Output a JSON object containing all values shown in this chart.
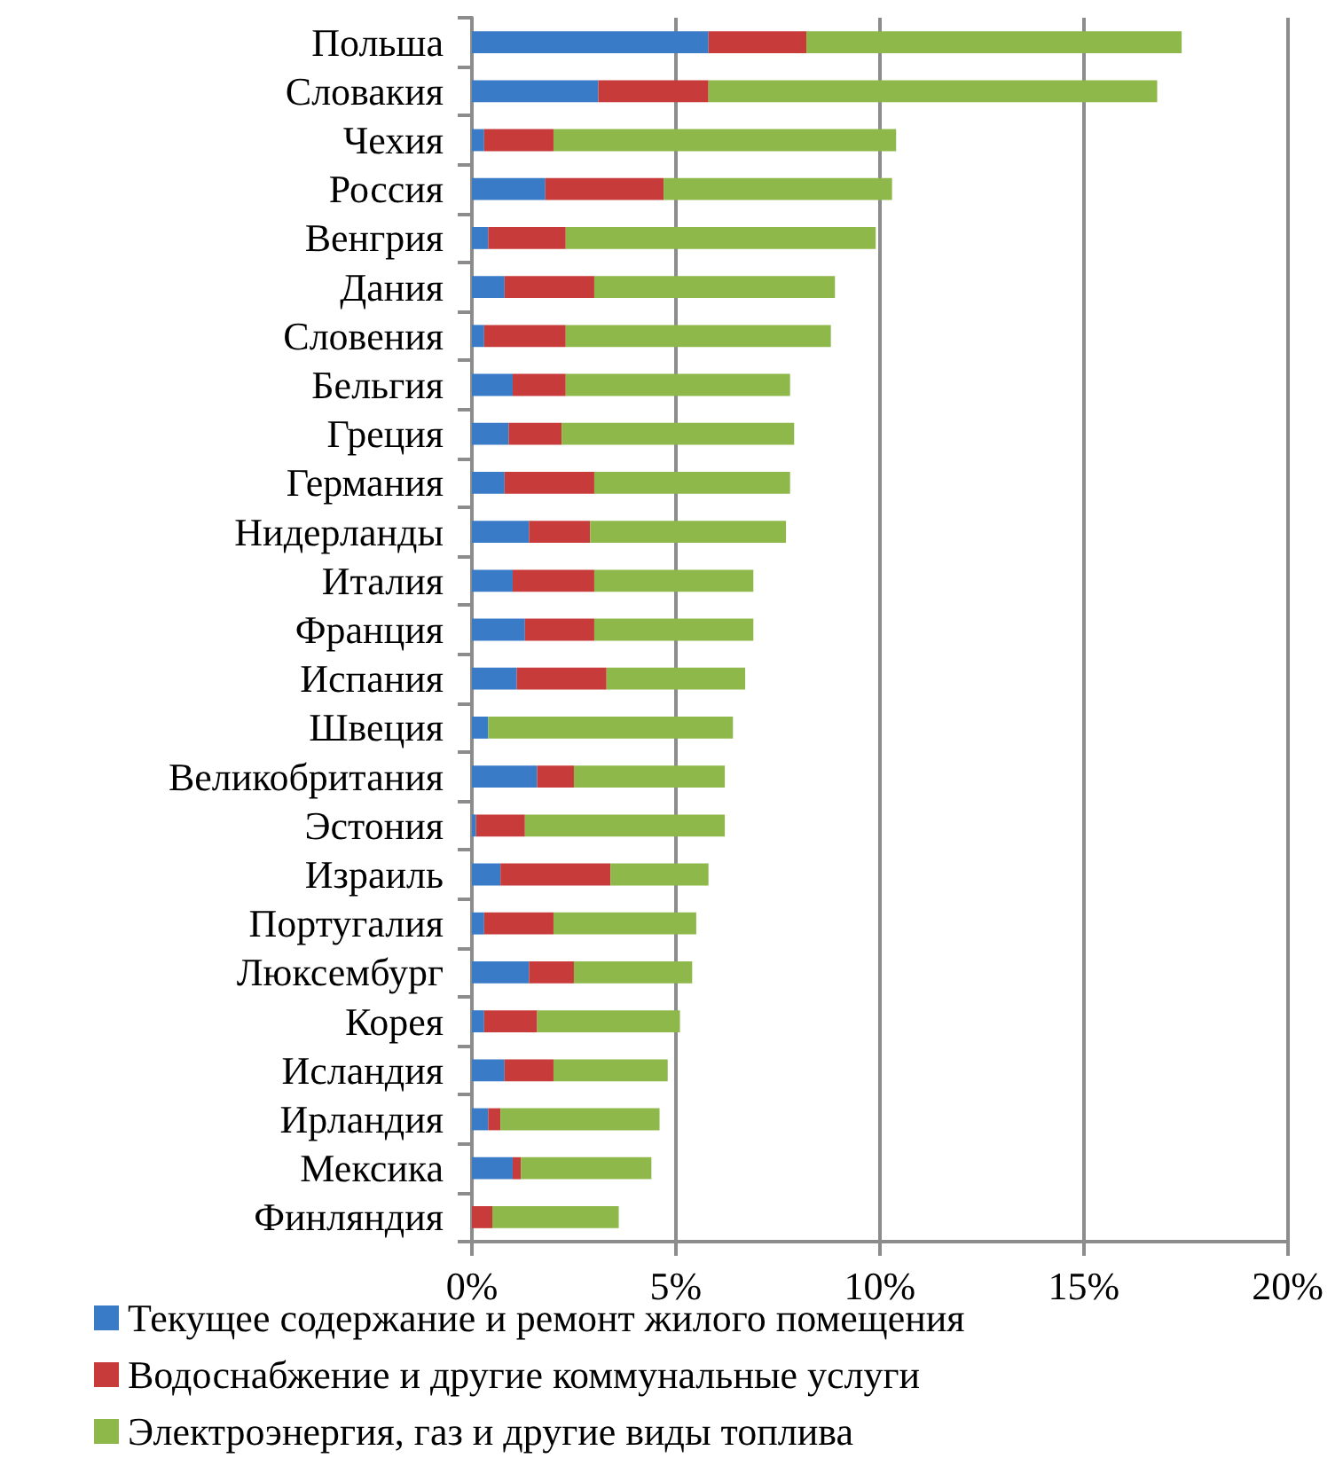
{
  "chart_data": {
    "type": "bar",
    "orientation": "horizontal",
    "stacked": true,
    "categories": [
      "Польша",
      "Словакия",
      "Чехия",
      "Россия",
      "Венгрия",
      "Дания",
      "Словения",
      "Бельгия",
      "Греция",
      "Германия",
      "Нидерланды",
      "Италия",
      "Франция",
      "Испания",
      "Швеция",
      "Великобритания",
      "Эстония",
      "Израиль",
      "Португалия",
      "Люксембург",
      "Корея",
      "Исландия",
      "Ирландия",
      "Мексика",
      "Финляндия"
    ],
    "series": [
      {
        "name": "Текущее содержание и ремонт жилого помещения",
        "color": "#3a7bc8",
        "values": [
          5.8,
          3.1,
          0.3,
          1.8,
          0.4,
          0.8,
          0.3,
          1.0,
          0.9,
          0.8,
          1.4,
          1.0,
          1.3,
          1.1,
          0.4,
          1.6,
          0.1,
          0.7,
          0.3,
          1.4,
          0.3,
          0.8,
          0.4,
          1.0,
          0
        ]
      },
      {
        "name": "Водоснабжение и другие коммунальные услуги",
        "color": "#c83b3b",
        "values": [
          2.4,
          2.7,
          1.7,
          2.9,
          1.9,
          2.2,
          2.0,
          1.3,
          1.3,
          2.2,
          1.5,
          2.0,
          1.7,
          2.2,
          0,
          0.9,
          1.2,
          2.7,
          1.7,
          1.1,
          1.3,
          1.2,
          0.3,
          0.2,
          0.5
        ]
      },
      {
        "name": "Электроэнергия, газ и другие виды топлива",
        "color": "#8fb84a",
        "values": [
          9.2,
          11.0,
          8.4,
          5.6,
          7.6,
          5.9,
          6.5,
          5.5,
          5.7,
          4.8,
          4.8,
          3.9,
          3.9,
          3.4,
          6.0,
          3.7,
          4.9,
          2.4,
          3.5,
          2.9,
          3.5,
          2.8,
          3.9,
          3.2,
          3.1
        ]
      }
    ],
    "xlim": [
      0,
      20
    ],
    "xticks": [
      {
        "value": 0,
        "label": "0%"
      },
      {
        "value": 5,
        "label": "5%"
      },
      {
        "value": 10,
        "label": "10%"
      },
      {
        "value": 15,
        "label": "15%"
      },
      {
        "value": 20,
        "label": "20%"
      }
    ],
    "grid": "x",
    "legend": "bottom"
  }
}
